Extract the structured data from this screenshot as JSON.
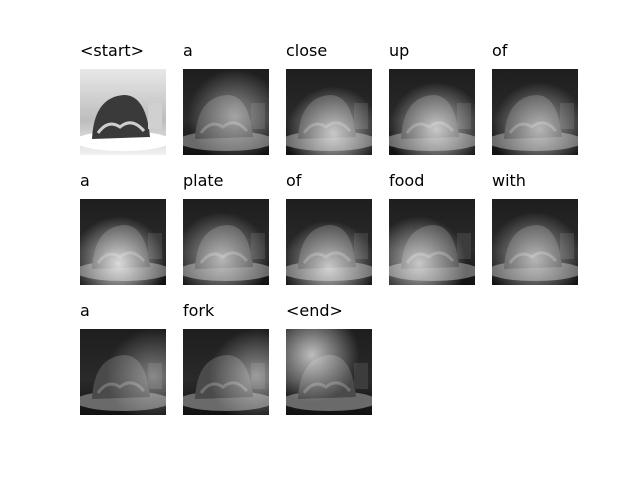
{
  "figure": {
    "words": [
      "<start>",
      "a",
      "close",
      "up",
      "of",
      "a",
      "plate",
      "of",
      "food",
      "with",
      "a",
      "fork",
      "<end>"
    ],
    "columns": 5
  }
}
